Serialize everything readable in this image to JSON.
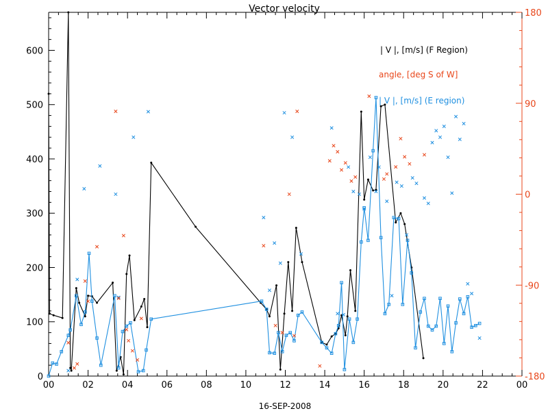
{
  "chart_data": {
    "type": "line",
    "title": "Vector velocity",
    "xlabel": "16-SEP-2008",
    "xlim": [
      0,
      24
    ],
    "x_ticks": [
      "00",
      "02",
      "04",
      "06",
      "08",
      "10",
      "12",
      "14",
      "16",
      "18",
      "20",
      "22",
      "00"
    ],
    "ylim": [
      0,
      670
    ],
    "y_ticks": [
      "0",
      "100",
      "200",
      "300",
      "400",
      "500",
      "600"
    ],
    "y2lim": [
      -180,
      180
    ],
    "y2_ticks": [
      "-180",
      "-90",
      "0",
      "90",
      "180"
    ],
    "y2_tick_values": [
      -180,
      -90,
      0,
      90,
      180
    ],
    "legend_position": "top-right",
    "colors": {
      "f_region": "#000000",
      "angle": "#e8461a",
      "e_region": "#1e8fe0",
      "axis": "#000000",
      "right_axis": "#e8461a"
    },
    "series": [
      {
        "key": "f_region",
        "name": "| V |, [m/s] (F Region)",
        "style": "line-dot",
        "axis": "left",
        "x": [
          0.0,
          0.05,
          0.25,
          0.7,
          1.0,
          1.1,
          1.15,
          1.4,
          1.55,
          1.85,
          2.0,
          2.2,
          2.45,
          3.25,
          3.45,
          3.65,
          3.8,
          3.95,
          4.1,
          4.35,
          4.7,
          4.85,
          5.0,
          5.2,
          7.45,
          10.75,
          11.05,
          11.2,
          11.55,
          11.75,
          11.95,
          12.15,
          12.35,
          12.55,
          12.85,
          13.85,
          14.1,
          14.35,
          14.55,
          14.7,
          14.85,
          15.05,
          15.15,
          15.3,
          15.55,
          15.85,
          16.0,
          16.2,
          16.45,
          16.6,
          16.85,
          17.05,
          17.6,
          17.85,
          18.05,
          18.4,
          19.0
        ],
        "y": [
          520,
          115,
          112,
          107,
          670,
          15,
          10,
          162,
          135,
          110,
          148,
          147,
          135,
          172,
          10,
          35,
          3,
          188,
          222,
          103,
          128,
          142,
          90,
          393,
          275,
          135,
          123,
          110,
          167,
          12,
          115,
          210,
          120,
          273,
          210,
          62,
          58,
          73,
          78,
          88,
          112,
          75,
          110,
          195,
          120,
          487,
          325,
          362,
          342,
          343,
          497,
          500,
          283,
          300,
          280,
          200,
          33
        ]
      },
      {
        "key": "e_region",
        "name": "| V |, [m/s] (E region)",
        "style": "line-square",
        "axis": "left",
        "x": [
          0.0,
          0.2,
          0.4,
          0.65,
          1.0,
          1.1,
          1.4,
          1.65,
          1.85,
          2.05,
          2.2,
          2.45,
          2.65,
          3.35,
          3.55,
          3.75,
          3.95,
          4.15,
          4.55,
          4.8,
          4.95,
          5.2,
          10.8,
          11.05,
          11.2,
          11.45,
          11.65,
          11.85,
          12.05,
          12.25,
          12.45,
          12.65,
          12.85,
          13.85,
          14.1,
          14.35,
          14.55,
          14.7,
          14.85,
          15.0,
          15.25,
          15.45,
          15.65,
          15.85,
          16.0,
          16.2,
          16.45,
          16.6,
          16.85,
          17.05,
          17.25,
          17.5,
          17.75,
          17.95,
          18.2,
          18.4,
          18.6,
          18.85,
          19.05,
          19.25,
          19.45,
          19.65,
          19.85,
          20.05,
          20.25,
          20.45,
          20.65,
          20.85,
          21.05,
          21.25,
          21.45,
          21.65,
          21.85
        ],
        "y": [
          0,
          24,
          22,
          45,
          75,
          85,
          148,
          95,
          118,
          226,
          138,
          70,
          20,
          148,
          15,
          82,
          92,
          98,
          8,
          10,
          48,
          105,
          138,
          123,
          43,
          42,
          80,
          45,
          75,
          80,
          65,
          112,
          118,
          62,
          52,
          42,
          78,
          93,
          172,
          12,
          105,
          62,
          105,
          247,
          310,
          250,
          415,
          513,
          255,
          115,
          132,
          292,
          290,
          132,
          250,
          190,
          52,
          118,
          143,
          92,
          85,
          92,
          143,
          60,
          129,
          45,
          98,
          142,
          115,
          146,
          90,
          93,
          97
        ]
      },
      {
        "key": "e_region_x",
        "style": "x-marker",
        "axis": "left",
        "x": [
          1.0,
          1.45,
          1.8,
          2.6,
          3.4,
          3.55,
          4.3,
          5.05,
          10.9,
          11.2,
          11.45,
          11.75,
          11.95,
          12.35,
          12.8,
          14.35,
          14.65,
          14.95,
          15.2,
          15.45,
          15.75,
          16.0,
          16.3,
          16.6,
          16.75,
          17.15,
          17.4,
          17.65,
          17.9,
          18.15,
          18.45,
          18.65,
          19.05,
          19.25,
          19.45,
          19.65,
          19.85,
          20.05,
          20.25,
          20.45,
          20.65,
          20.85,
          21.05,
          21.25,
          21.45,
          21.85
        ],
        "y": [
          10,
          178,
          345,
          387,
          335,
          145,
          440,
          487,
          292,
          158,
          245,
          208,
          485,
          440,
          225,
          457,
          115,
          113,
          385,
          340,
          335,
          308,
          403,
          340,
          385,
          322,
          148,
          357,
          350,
          260,
          365,
          355,
          328,
          318,
          430,
          452,
          440,
          460,
          403,
          337,
          478,
          436,
          465,
          170,
          152,
          70
        ]
      },
      {
        "key": "angle",
        "name": "angle, [deg S of W]",
        "style": "x-marker",
        "axis": "right",
        "x": [
          1.0,
          1.3,
          1.45,
          1.85,
          2.0,
          2.45,
          3.4,
          3.55,
          3.8,
          3.95,
          4.05,
          4.25,
          4.5,
          4.7,
          10.9,
          11.5,
          11.85,
          12.2,
          12.45,
          12.6,
          13.75,
          14.25,
          14.45,
          14.65,
          14.85,
          15.05,
          15.35,
          15.55,
          16.25,
          17.0,
          17.15,
          17.6,
          17.85,
          18.05,
          18.3,
          19.05
        ],
        "y": [
          -147,
          -172,
          -168,
          -86,
          -106,
          -52,
          82,
          -103,
          -41,
          -134,
          -145,
          -155,
          -164,
          -123,
          -51,
          -130,
          -137,
          0,
          -140,
          82,
          -170,
          33,
          48,
          42,
          24,
          31,
          13,
          17,
          97,
          15,
          20,
          27,
          55,
          37,
          30,
          39
        ]
      }
    ]
  }
}
